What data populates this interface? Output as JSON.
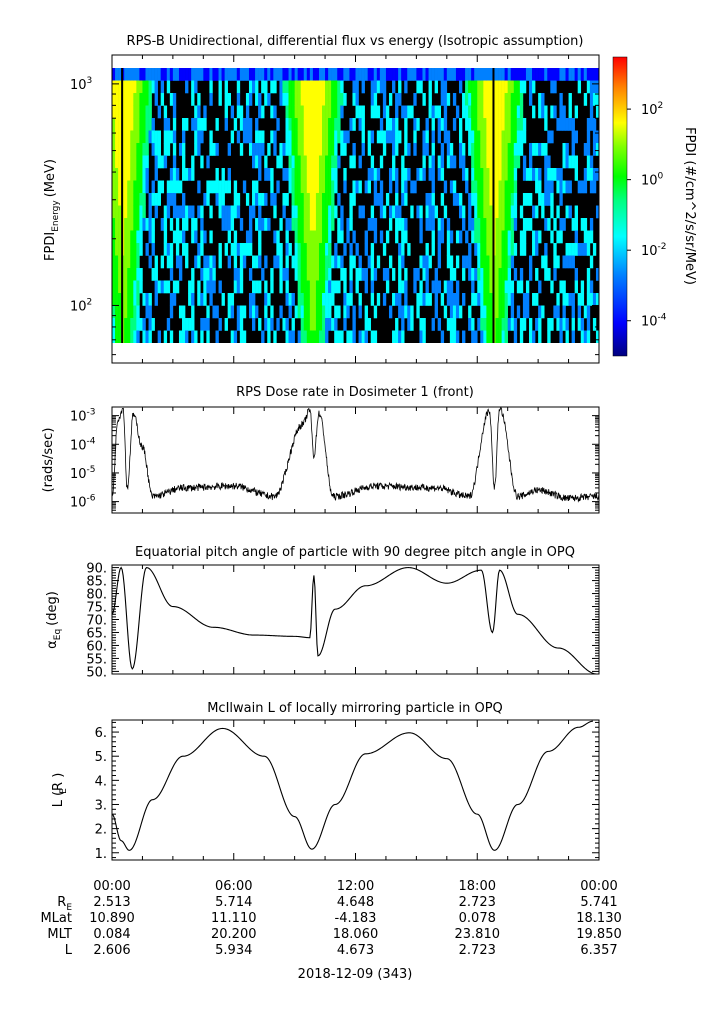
{
  "chart_data": [
    {
      "type": "heatmap",
      "title": "RPS-B  Unidirectional, differential flux vs energy (Isotropic assumption)",
      "ylabel": "FPDI",
      "ylabel_sub": "Energy",
      "ylabel_unit": "(MeV)",
      "yscale": "log",
      "ylim": [
        55,
        1350
      ],
      "yticks": [
        {
          "base": "10",
          "exp": "3",
          "value": 1000
        },
        {
          "base": "10",
          "exp": "2",
          "value": 100
        }
      ],
      "xlim_hours": [
        0,
        24
      ],
      "colorbar": {
        "label": "FPDI (#/cm^2/s/sr/MeV)",
        "scale": "log",
        "range": [
          1e-05,
          3000
        ],
        "ticks": [
          {
            "base": "10",
            "exp": "2",
            "value": 100
          },
          {
            "base": "10",
            "exp": "0",
            "value": 1
          },
          {
            "base": "10",
            "exp": "-2",
            "value": 0.01
          },
          {
            "base": "10",
            "exp": "-4",
            "value": 0.0001
          }
        ]
      },
      "belt_peaks_hours": [
        0.55,
        9.9,
        18.85
      ]
    },
    {
      "type": "line",
      "title": "RPS  Dose rate in Dosimeter 1 (front)",
      "ylabel": "(rads/sec)",
      "yscale": "log",
      "ylim": [
        4e-07,
        0.002
      ],
      "yticks": [
        {
          "base": "10",
          "exp": "-3",
          "value": 0.001
        },
        {
          "base": "10",
          "exp": "-4",
          "value": 0.0001
        },
        {
          "base": "10",
          "exp": "-5",
          "value": 1e-05
        },
        {
          "base": "10",
          "exp": "-6",
          "value": 1e-06
        }
      ],
      "xlim_hours": [
        0,
        24
      ],
      "key_points": [
        {
          "t": 0.0,
          "v": 1.5e-06
        },
        {
          "t": 0.3,
          "v": 0.0008
        },
        {
          "t": 0.55,
          "v": 0.0018
        },
        {
          "t": 0.75,
          "v": 3e-06
        },
        {
          "t": 1.05,
          "v": 0.0011
        },
        {
          "t": 1.5,
          "v": 8e-05
        },
        {
          "t": 2.0,
          "v": 1.5e-06
        },
        {
          "t": 3.5,
          "v": 3e-06
        },
        {
          "t": 6.0,
          "v": 3.5e-06
        },
        {
          "t": 8.0,
          "v": 1.5e-06
        },
        {
          "t": 9.4,
          "v": 0.0005
        },
        {
          "t": 9.75,
          "v": 0.0016
        },
        {
          "t": 9.95,
          "v": 4e-05
        },
        {
          "t": 10.2,
          "v": 0.0012
        },
        {
          "t": 10.9,
          "v": 1.5e-06
        },
        {
          "t": 13.0,
          "v": 3.5e-06
        },
        {
          "t": 16.0,
          "v": 3e-06
        },
        {
          "t": 17.6,
          "v": 1.5e-06
        },
        {
          "t": 18.6,
          "v": 0.0015
        },
        {
          "t": 18.85,
          "v": 3e-06
        },
        {
          "t": 19.1,
          "v": 0.0018
        },
        {
          "t": 20.0,
          "v": 1.5e-06
        },
        {
          "t": 21.0,
          "v": 2.5e-06
        },
        {
          "t": 22.5,
          "v": 1.3e-06
        },
        {
          "t": 24.0,
          "v": 1.5e-06
        }
      ]
    },
    {
      "type": "line",
      "title": "Equatorial pitch angle of particle with 90 degree pitch angle in OPQ",
      "ylabel": "α",
      "ylabel_sub": "Eq",
      "ylabel_unit": "(deg)",
      "ylim": [
        49,
        91
      ],
      "yticks": [
        50,
        55,
        60,
        65,
        70,
        75,
        80,
        85,
        90
      ],
      "ytick_labels": [
        "50.",
        "55.",
        "60.",
        "65.",
        "70.",
        "75.",
        "80.",
        "85.",
        "90."
      ],
      "xlim_hours": [
        0,
        24
      ],
      "key_points": [
        {
          "t": 0.0,
          "v": 72
        },
        {
          "t": 0.45,
          "v": 90
        },
        {
          "t": 1.0,
          "v": 51
        },
        {
          "t": 1.7,
          "v": 90
        },
        {
          "t": 3.0,
          "v": 75
        },
        {
          "t": 5.0,
          "v": 67
        },
        {
          "t": 7.0,
          "v": 64
        },
        {
          "t": 9.0,
          "v": 63.5
        },
        {
          "t": 9.75,
          "v": 63
        },
        {
          "t": 9.95,
          "v": 87
        },
        {
          "t": 10.15,
          "v": 56
        },
        {
          "t": 11.0,
          "v": 74
        },
        {
          "t": 12.5,
          "v": 83
        },
        {
          "t": 14.6,
          "v": 90
        },
        {
          "t": 16.5,
          "v": 84
        },
        {
          "t": 18.2,
          "v": 89
        },
        {
          "t": 18.75,
          "v": 65
        },
        {
          "t": 19.1,
          "v": 89
        },
        {
          "t": 20.0,
          "v": 72
        },
        {
          "t": 22.0,
          "v": 59
        },
        {
          "t": 23.9,
          "v": 49
        }
      ]
    },
    {
      "type": "line",
      "title": "McIlwain L of locally mirroring particle in OPQ",
      "ylabel": "L",
      "ylabel_sub": "E",
      "ylabel_unit": "(R  )",
      "ylim": [
        0.7,
        6.5
      ],
      "yticks": [
        1,
        2,
        3,
        4,
        5,
        6
      ],
      "ytick_labels": [
        "1.",
        "2.",
        "3.",
        "4.",
        "5.",
        "6."
      ],
      "xlim_hours": [
        0,
        24
      ],
      "key_points": [
        {
          "t": 0.0,
          "v": 2.6
        },
        {
          "t": 0.45,
          "v": 1.5
        },
        {
          "t": 0.85,
          "v": 1.1
        },
        {
          "t": 2.0,
          "v": 3.2
        },
        {
          "t": 3.5,
          "v": 5.0
        },
        {
          "t": 5.45,
          "v": 6.15
        },
        {
          "t": 7.5,
          "v": 5.0
        },
        {
          "t": 9.0,
          "v": 2.5
        },
        {
          "t": 9.85,
          "v": 1.15
        },
        {
          "t": 11.0,
          "v": 3.0
        },
        {
          "t": 12.5,
          "v": 5.1
        },
        {
          "t": 14.65,
          "v": 5.97
        },
        {
          "t": 16.5,
          "v": 4.9
        },
        {
          "t": 18.0,
          "v": 2.6
        },
        {
          "t": 18.85,
          "v": 1.1
        },
        {
          "t": 20.0,
          "v": 3.0
        },
        {
          "t": 21.5,
          "v": 5.2
        },
        {
          "t": 23.0,
          "v": 6.2
        },
        {
          "t": 23.7,
          "v": 6.45
        }
      ]
    }
  ],
  "footer": {
    "time_labels": [
      "00:00",
      "06:00",
      "12:00",
      "18:00",
      "00:00"
    ],
    "rows": [
      {
        "label": "R",
        "sub": "E",
        "values": [
          "2.513",
          "5.714",
          "4.648",
          "2.723",
          "5.741"
        ]
      },
      {
        "label": "MLat",
        "sub": "",
        "values": [
          "10.890",
          "11.110",
          "-4.183",
          "0.078",
          "18.130"
        ]
      },
      {
        "label": "MLT",
        "sub": "",
        "values": [
          "0.084",
          "20.200",
          "18.060",
          "23.810",
          "19.850"
        ]
      },
      {
        "label": "L",
        "sub": "",
        "values": [
          "2.606",
          "5.934",
          "4.673",
          "2.723",
          "6.357"
        ]
      }
    ],
    "date": "2018-12-09 (343)"
  },
  "colors": {
    "line": "#000000",
    "colormap": [
      "#00007f",
      "#0000ff",
      "#0080ff",
      "#00ffff",
      "#00ff80",
      "#00ff00",
      "#80ff00",
      "#ffff00",
      "#ff8000",
      "#ff0000"
    ]
  }
}
